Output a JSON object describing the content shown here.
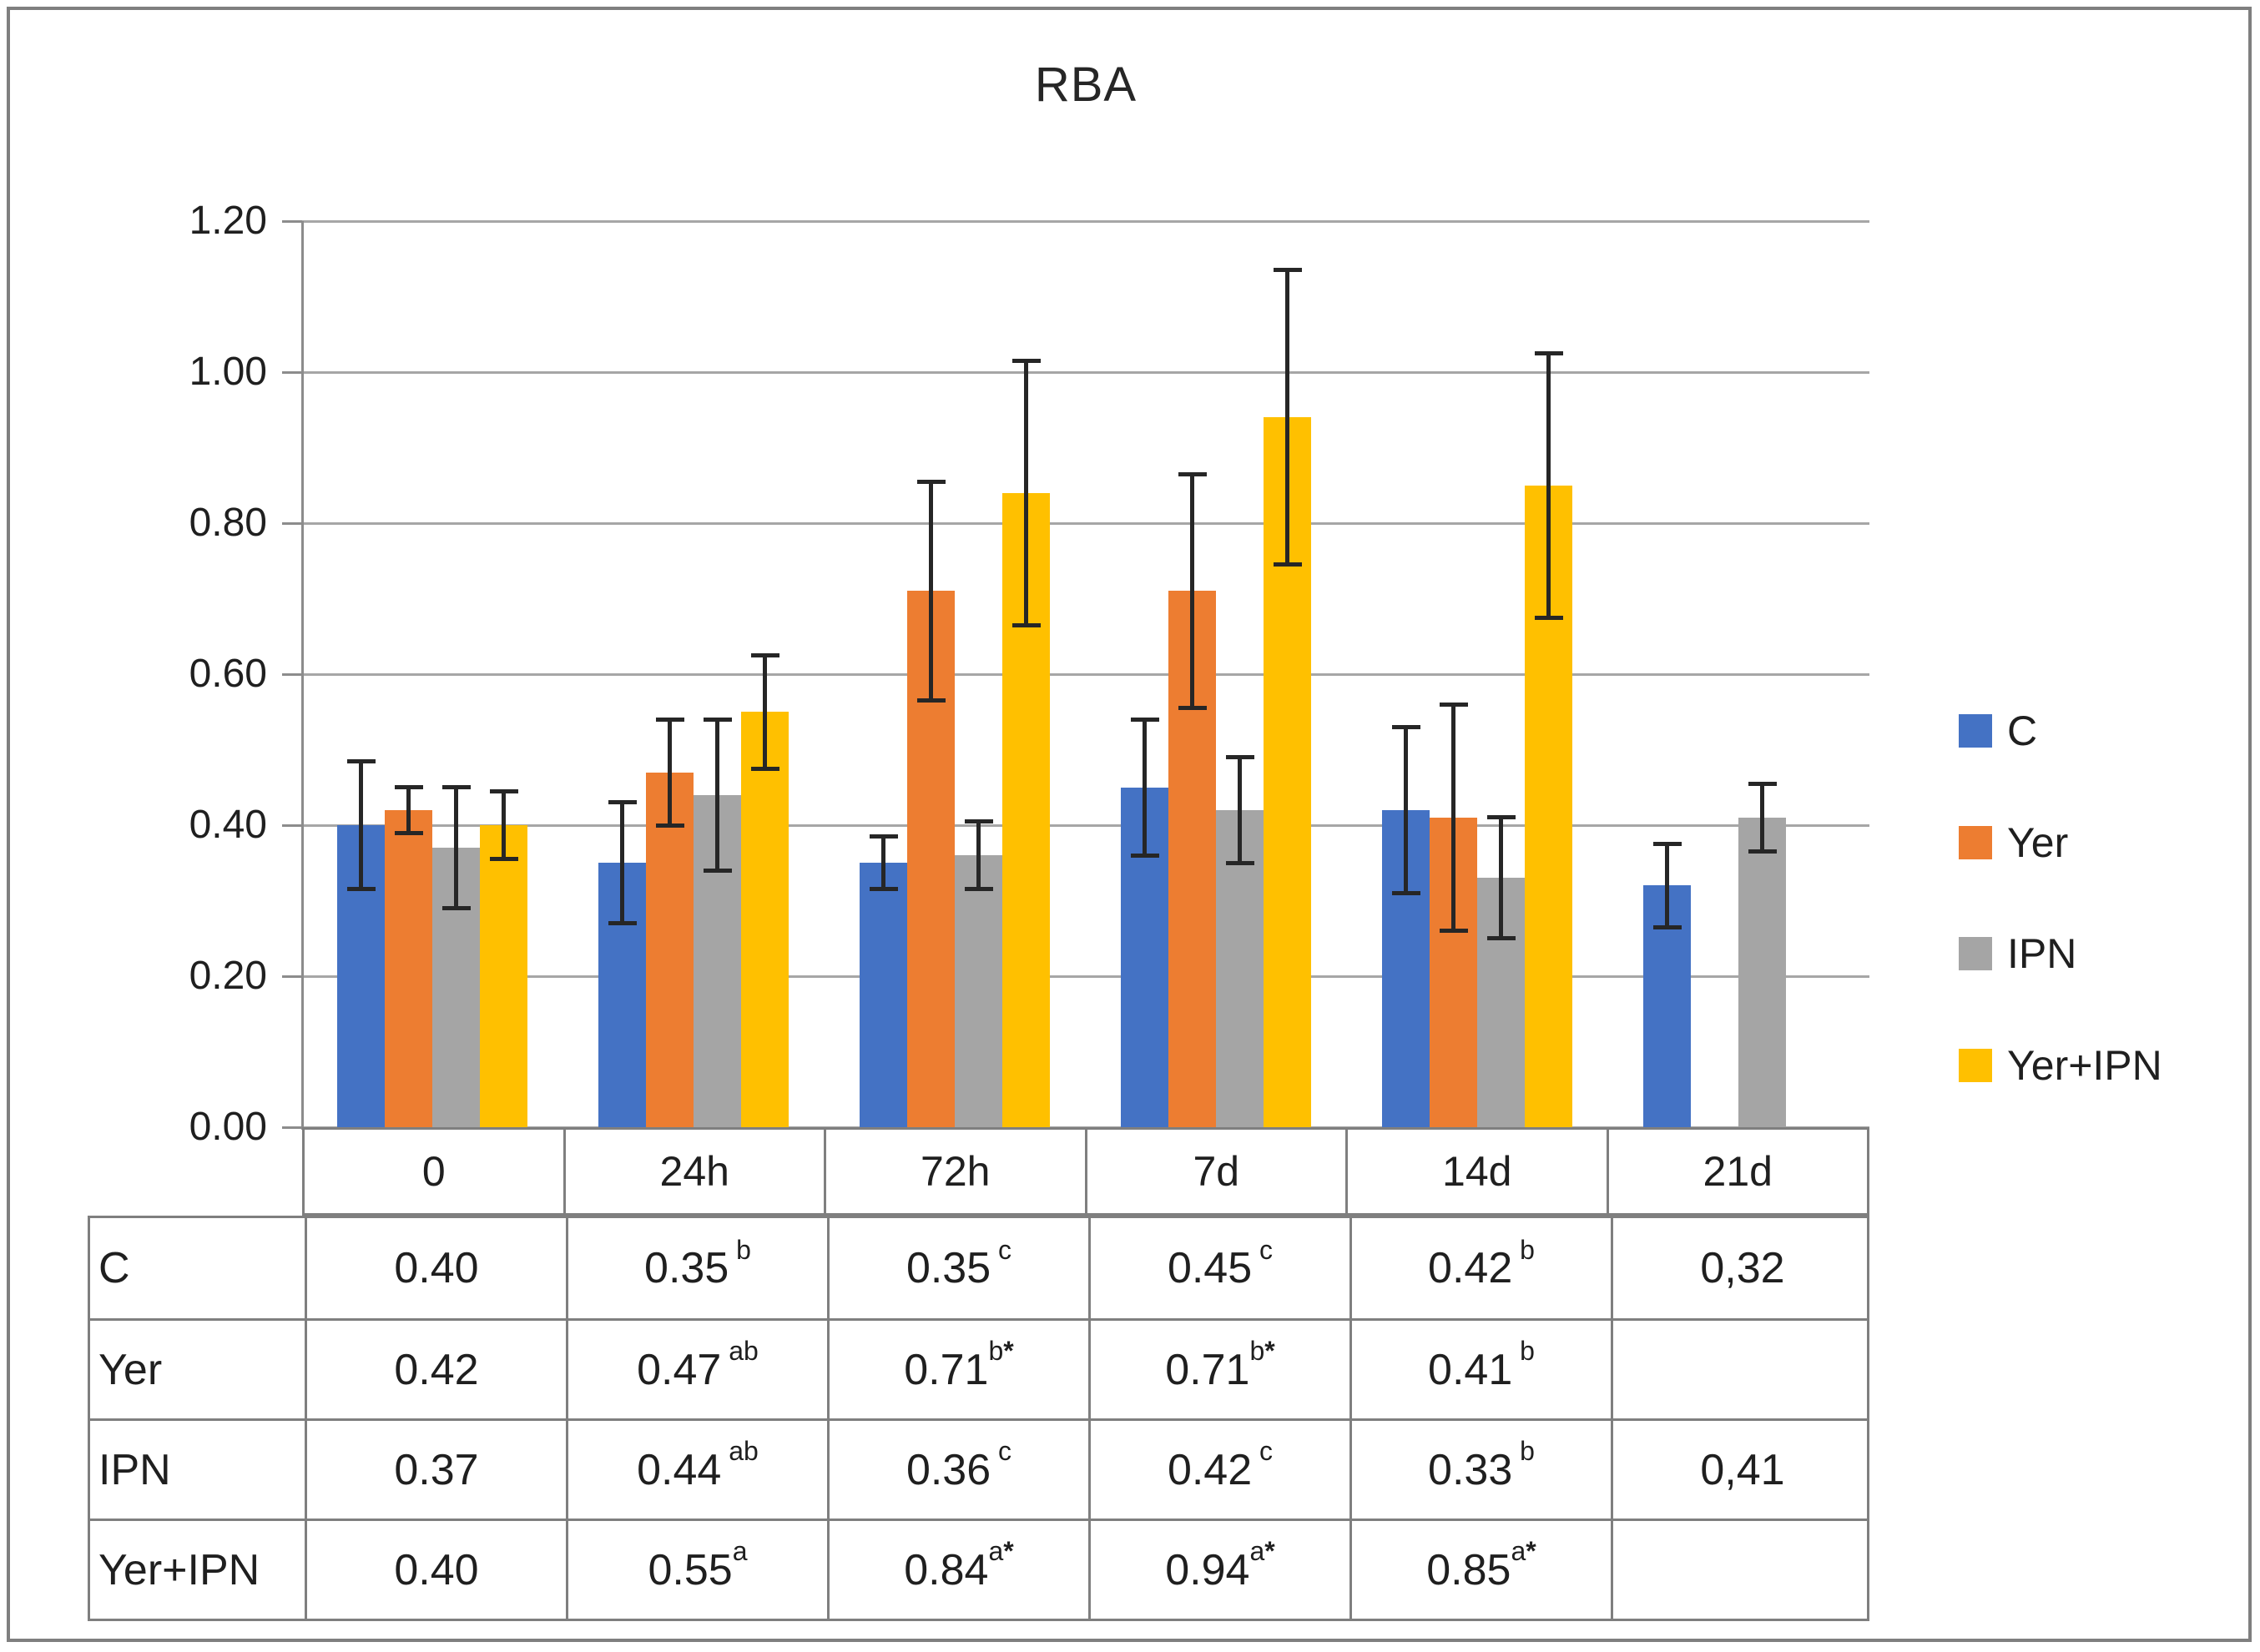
{
  "chart_data": {
    "type": "bar",
    "title": "RBA",
    "categories": [
      "0",
      "24h",
      "72h",
      "7d",
      "14d",
      "21d"
    ],
    "series": [
      {
        "name": "C",
        "color": "#4472C4",
        "values": [
          0.4,
          0.35,
          0.35,
          0.45,
          0.42,
          0.32
        ],
        "errors": [
          0.085,
          0.08,
          0.035,
          0.09,
          0.11,
          0.055
        ]
      },
      {
        "name": "Yer",
        "color": "#ED7D31",
        "values": [
          0.42,
          0.47,
          0.71,
          0.71,
          0.41,
          null
        ],
        "errors": [
          0.03,
          0.07,
          0.145,
          0.155,
          0.15,
          null
        ]
      },
      {
        "name": "IPN",
        "color": "#A5A5A5",
        "values": [
          0.37,
          0.44,
          0.36,
          0.42,
          0.33,
          0.41
        ],
        "errors": [
          0.08,
          0.1,
          0.045,
          0.07,
          0.08,
          0.045
        ]
      },
      {
        "name": "Yer+IPN",
        "color": "#FFC000",
        "values": [
          0.4,
          0.55,
          0.84,
          0.94,
          0.85,
          null
        ],
        "errors": [
          0.045,
          0.075,
          0.175,
          0.195,
          0.175,
          null
        ]
      }
    ],
    "y_ticks": [
      "1.20",
      "1.00",
      "0.80",
      "0.60",
      "0.40",
      "0.20",
      "0.00"
    ],
    "ylim": [
      0,
      1.2
    ],
    "grid": true,
    "error_bars": true,
    "legend_position": "right",
    "xlabel": "",
    "ylabel": ""
  },
  "legend": {
    "items": [
      {
        "label": "C",
        "color": "#4472C4"
      },
      {
        "label": "Yer",
        "color": "#ED7D31"
      },
      {
        "label": "IPN",
        "color": "#A5A5A5"
      },
      {
        "label": "Yer+IPN",
        "color": "#FFC000"
      }
    ]
  },
  "data_table": {
    "rows": [
      {
        "label": "C",
        "cells": [
          {
            "v": "0.40",
            "sup": ""
          },
          {
            "v": "0.35",
            "sup": " b"
          },
          {
            "v": "0.35",
            "sup": " c"
          },
          {
            "v": "0.45",
            "sup": " c"
          },
          {
            "v": "0.42",
            "sup": " b"
          },
          {
            "v": "0,32",
            "sup": ""
          }
        ]
      },
      {
        "label": "Yer",
        "cells": [
          {
            "v": "0.42",
            "sup": ""
          },
          {
            "v": "0.47",
            "sup": " ab"
          },
          {
            "v": "0.71",
            "sup": "b*"
          },
          {
            "v": "0.71",
            "sup": "b*"
          },
          {
            "v": "0.41",
            "sup": " b"
          },
          {
            "v": "",
            "sup": ""
          }
        ]
      },
      {
        "label": "IPN",
        "cells": [
          {
            "v": "0.37",
            "sup": ""
          },
          {
            "v": "0.44",
            "sup": " ab"
          },
          {
            "v": "0.36",
            "sup": " c"
          },
          {
            "v": "0.42",
            "sup": " c"
          },
          {
            "v": "0.33",
            "sup": " b"
          },
          {
            "v": "0,41",
            "sup": ""
          }
        ]
      },
      {
        "label": "Yer+IPN",
        "cells": [
          {
            "v": "0.40",
            "sup": ""
          },
          {
            "v": "0.55",
            "sup": "a"
          },
          {
            "v": "0.84",
            "sup": "a*"
          },
          {
            "v": "0.94",
            "sup": "a*"
          },
          {
            "v": "0.85",
            "sup": "a*"
          },
          {
            "v": "",
            "sup": ""
          }
        ]
      }
    ]
  },
  "colors": {
    "grid": "#A6A6A6",
    "axis": "#8C8C8C",
    "table_border": "#7F7F7F",
    "text": "#1F1F1F",
    "error_bar": "#262626"
  }
}
